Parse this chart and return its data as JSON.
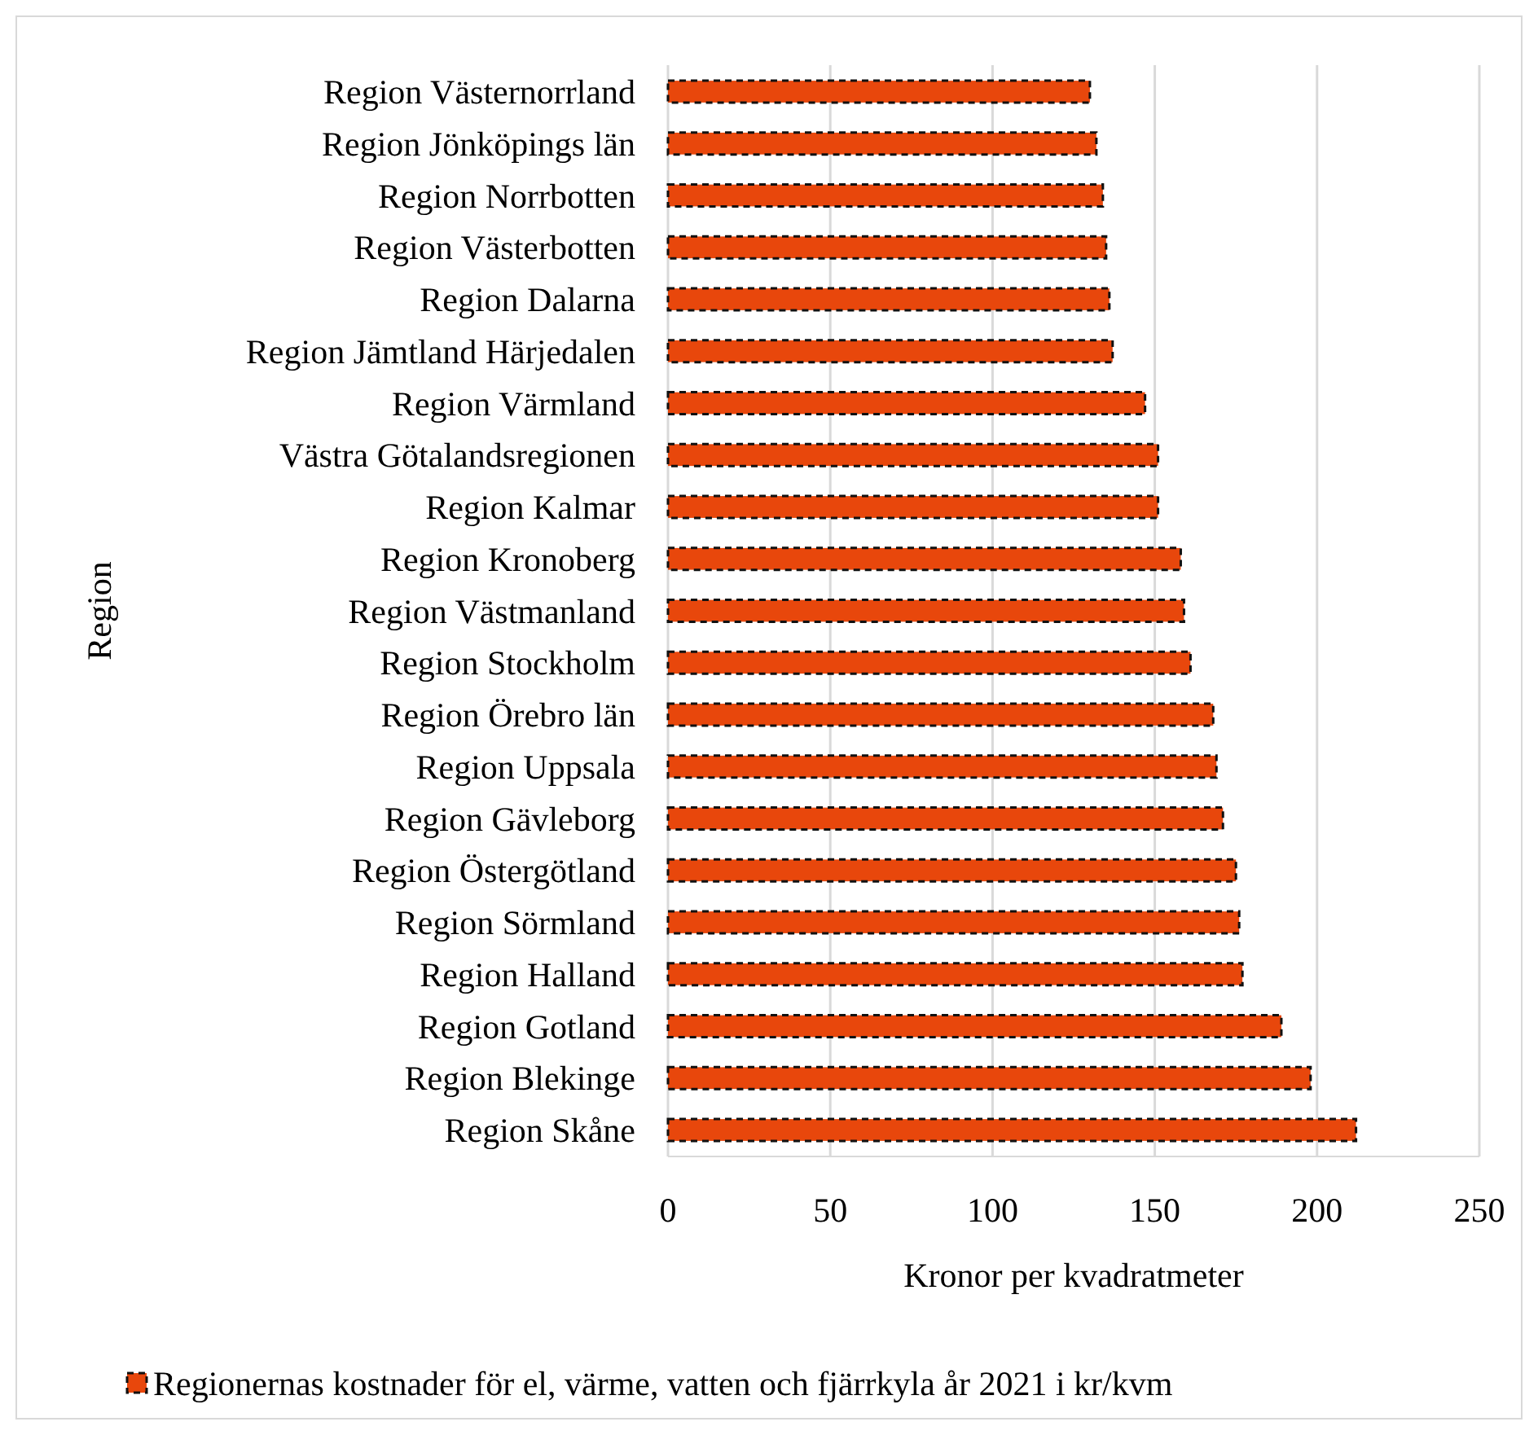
{
  "chart_data": {
    "type": "bar",
    "orientation": "horizontal",
    "xlabel": "Kronor per kvadratmeter",
    "ylabel": "Region",
    "categories": [
      "Region Västernorrland",
      "Region Jönköpings län",
      "Region Norrbotten",
      "Region Västerbotten",
      "Region Dalarna",
      "Region Jämtland Härjedalen",
      "Region Värmland",
      "Västra Götalandsregionen",
      "Region Kalmar",
      "Region Kronoberg",
      "Region Västmanland",
      "Region Stockholm",
      "Region Örebro län",
      "Region Uppsala",
      "Region Gävleborg",
      "Region Östergötland",
      "Region Sörmland",
      "Region Halland",
      "Region Gotland",
      "Region Blekinge",
      "Region Skåne"
    ],
    "series": [
      {
        "name": "Regionernas kostnader för el, värme, vatten och fjärrkyla år 2021 i kr/kvm",
        "color": "#e8470c",
        "values": [
          130,
          132,
          134,
          135,
          136,
          137,
          147,
          151,
          151,
          158,
          159,
          161,
          168,
          169,
          171,
          175,
          176,
          177,
          189,
          198,
          212
        ]
      }
    ],
    "xlim": [
      0,
      250
    ],
    "xticks": [
      0,
      50,
      100,
      150,
      200,
      250
    ],
    "grid": "x",
    "legend": "bottom",
    "line_style": "dashed"
  }
}
